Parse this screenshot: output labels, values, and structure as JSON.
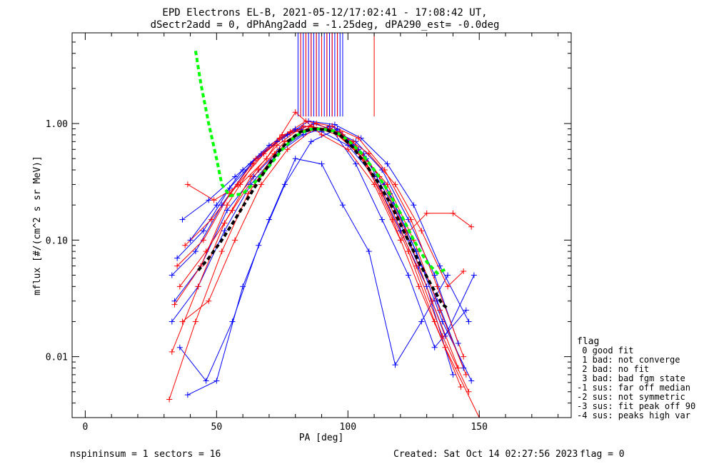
{
  "chart_data": {
    "type": "line",
    "title": "EPD Electrons EL-B, 2021-05-12/17:02:41 - 17:08:42 UT,",
    "subtitle": "dSectr2add = 0, dPhAng2add = -1.25deg, dPA290_est=  -0.0deg",
    "xlabel": "PA [deg]",
    "ylabel": "mflux [#/(cm^2 s sr MeV)]",
    "xlim": [
      -5,
      185
    ],
    "ylim": [
      0.003,
      6.0
    ],
    "yscale": "log",
    "xticks": [
      "0",
      "50",
      "100",
      "150"
    ],
    "yticks": [
      "0.01",
      "0.10",
      "1.00"
    ],
    "grid": false,
    "legend_position": "right",
    "colors": {
      "blue": "#0000ff",
      "red": "#ff0000",
      "green": "#00ff00",
      "black": "#000000"
    },
    "series": [
      {
        "color": "green",
        "style": "dashed-thick",
        "x": [
          42,
          44,
          47,
          50,
          52,
          55,
          60,
          65,
          70,
          75,
          80,
          85,
          90,
          95,
          100,
          105,
          110,
          115,
          120,
          125,
          130,
          134,
          137
        ],
        "y": [
          4.2,
          2.2,
          1.0,
          0.5,
          0.3,
          0.24,
          0.25,
          0.32,
          0.43,
          0.6,
          0.78,
          0.89,
          0.9,
          0.86,
          0.72,
          0.56,
          0.4,
          0.27,
          0.17,
          0.1,
          0.065,
          0.052,
          0.056
        ]
      },
      {
        "color": "black",
        "style": "dashed-thick",
        "x": [
          43,
          47,
          52,
          57,
          62,
          67,
          72,
          77,
          82,
          87,
          92,
          97,
          102,
          107,
          112,
          117,
          122,
          127,
          132,
          136,
          138
        ],
        "y": [
          0.055,
          0.07,
          0.1,
          0.15,
          0.23,
          0.35,
          0.52,
          0.7,
          0.85,
          0.9,
          0.88,
          0.8,
          0.62,
          0.44,
          0.3,
          0.19,
          0.11,
          0.065,
          0.04,
          0.028,
          0.026
        ]
      },
      {
        "color": "blue",
        "x": [
          33,
          42,
          52,
          63,
          73,
          83,
          93,
          103,
          113,
          123,
          133,
          142
        ],
        "y": [
          0.05,
          0.08,
          0.2,
          0.45,
          0.7,
          0.95,
          0.9,
          0.7,
          0.4,
          0.15,
          0.05,
          0.013
        ]
      },
      {
        "color": "blue",
        "x": [
          34,
          44,
          54,
          64,
          74,
          84,
          94,
          104,
          114,
          124,
          134,
          144
        ],
        "y": [
          0.03,
          0.06,
          0.18,
          0.35,
          0.6,
          0.85,
          0.95,
          0.6,
          0.3,
          0.1,
          0.03,
          0.008
        ]
      },
      {
        "color": "blue",
        "x": [
          35,
          45,
          55,
          65,
          75,
          85,
          95,
          105,
          115,
          125,
          135,
          146
        ],
        "y": [
          0.07,
          0.12,
          0.28,
          0.5,
          0.75,
          1.05,
          0.98,
          0.75,
          0.45,
          0.2,
          0.06,
          0.02
        ]
      },
      {
        "color": "blue",
        "x": [
          36,
          46,
          56,
          66,
          76,
          86,
          96,
          106,
          116,
          126,
          136,
          147
        ],
        "y": [
          0.012,
          0.0062,
          0.02,
          0.09,
          0.3,
          0.7,
          0.9,
          0.55,
          0.25,
          0.08,
          0.02,
          0.0062
        ]
      },
      {
        "color": "blue",
        "x": [
          39,
          50,
          60,
          70,
          80,
          90,
          98,
          108,
          118,
          128,
          138
        ],
        "y": [
          0.0047,
          0.0062,
          0.04,
          0.15,
          0.5,
          0.45,
          0.2,
          0.08,
          0.0085,
          0.02,
          0.05
        ]
      },
      {
        "color": "blue",
        "x": [
          37,
          47,
          57,
          67,
          77,
          87,
          97,
          107,
          117,
          127,
          137,
          148
        ],
        "y": [
          0.15,
          0.22,
          0.35,
          0.55,
          0.8,
          1.0,
          0.85,
          0.5,
          0.2,
          0.06,
          0.015,
          0.05
        ]
      },
      {
        "color": "blue",
        "x": [
          33,
          43,
          53,
          63,
          73,
          83,
          93,
          103,
          113,
          123,
          133,
          145
        ],
        "y": [
          0.02,
          0.04,
          0.12,
          0.3,
          0.55,
          0.8,
          0.95,
          0.45,
          0.15,
          0.05,
          0.012,
          0.025
        ]
      },
      {
        "color": "blue",
        "x": [
          40,
          50,
          60,
          70,
          80,
          90,
          100,
          110,
          120,
          130,
          140
        ],
        "y": [
          0.1,
          0.2,
          0.4,
          0.65,
          0.9,
          0.85,
          0.65,
          0.35,
          0.12,
          0.04,
          0.007
        ]
      },
      {
        "color": "red",
        "x": [
          32,
          42,
          52,
          62,
          72,
          82,
          92,
          102,
          112,
          122,
          132,
          142
        ],
        "y": [
          0.0043,
          0.02,
          0.08,
          0.25,
          0.55,
          0.85,
          0.9,
          0.7,
          0.35,
          0.12,
          0.03,
          0.008
        ]
      },
      {
        "color": "red",
        "x": [
          33,
          43,
          53,
          63,
          73,
          83,
          93,
          103,
          113,
          123,
          133,
          143
        ],
        "y": [
          0.011,
          0.04,
          0.14,
          0.35,
          0.65,
          0.95,
          0.9,
          0.6,
          0.25,
          0.08,
          0.02,
          0.0055
        ]
      },
      {
        "color": "red",
        "x": [
          34,
          44,
          54,
          64,
          74,
          84,
          94,
          104,
          114,
          124,
          134,
          144
        ],
        "y": [
          0.028,
          0.06,
          0.2,
          0.45,
          0.75,
          1.05,
          0.95,
          0.75,
          0.4,
          0.15,
          0.04,
          0.01
        ]
      },
      {
        "color": "red",
        "x": [
          35,
          45,
          55,
          65,
          75,
          85,
          95,
          105,
          115,
          125,
          135,
          145
        ],
        "y": [
          0.06,
          0.1,
          0.25,
          0.5,
          0.8,
          0.9,
          0.85,
          0.55,
          0.3,
          0.1,
          0.025,
          0.007
        ]
      },
      {
        "color": "red",
        "x": [
          39,
          49,
          59,
          69,
          80,
          90,
          100,
          110,
          120,
          130,
          140,
          147
        ],
        "y": [
          0.3,
          0.22,
          0.3,
          0.5,
          1.25,
          0.8,
          0.6,
          0.3,
          0.1,
          0.17,
          0.17,
          0.13
        ]
      },
      {
        "color": "red",
        "x": [
          36,
          46,
          56,
          66,
          76,
          86,
          96,
          106,
          116,
          126,
          136,
          146
        ],
        "y": [
          0.04,
          0.08,
          0.18,
          0.4,
          0.7,
          0.95,
          0.8,
          0.5,
          0.2,
          0.06,
          0.015,
          0.005
        ]
      },
      {
        "color": "red",
        "x": [
          37,
          47,
          57,
          67,
          77,
          87,
          97,
          107,
          117,
          127,
          137,
          150
        ],
        "y": [
          0.02,
          0.03,
          0.1,
          0.3,
          0.6,
          0.9,
          0.85,
          0.45,
          0.15,
          0.04,
          0.012,
          0.003
        ]
      },
      {
        "color": "red",
        "x": [
          38,
          48,
          58,
          68,
          78,
          88,
          98,
          108,
          118,
          128,
          138,
          144
        ],
        "y": [
          0.09,
          0.15,
          0.3,
          0.55,
          0.85,
          1.0,
          0.8,
          0.55,
          0.3,
          0.12,
          0.04,
          0.054
        ]
      }
    ],
    "vertical_marks": {
      "blue_x": [
        81,
        82,
        83,
        84,
        85,
        86,
        87,
        88,
        89,
        90,
        91,
        92,
        93,
        94,
        95,
        96,
        97,
        98
      ],
      "red_x": [
        82,
        84,
        86,
        88,
        90,
        92,
        94,
        96,
        110
      ],
      "y_bottom": 1.15
    },
    "legend": {
      "title": "flag",
      "items": [
        " 0 good fit",
        " 1 bad: not converge",
        " 2 bad: no fit",
        " 3 bad: bad fgm state",
        "-1 sus: far off median",
        "-2 sus: not symmetric",
        "-3 sus: fit peak off 90",
        "-4 sus: peaks high var"
      ]
    }
  },
  "footer": {
    "left": "nspininsum =  1  sectors = 16",
    "created": "Created: Sat Oct 14 02:27:56 2023",
    "flag": "flag = 0"
  }
}
